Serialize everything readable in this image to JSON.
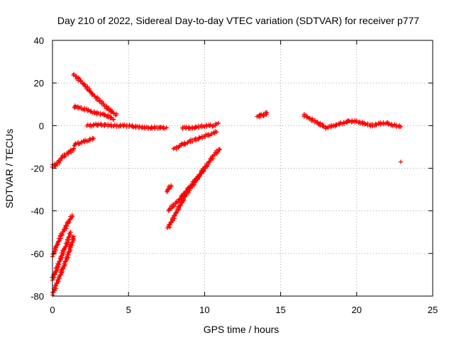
{
  "chart_data": {
    "type": "scatter",
    "title": "Day 210 of 2022, Sidereal Day-to-day VTEC variation (SDTVAR) for receiver p777",
    "xlabel": "GPS time / hours",
    "ylabel": "SDTVAR / TECUs",
    "xlim": [
      0,
      25
    ],
    "ylim": [
      -80,
      40
    ],
    "xticks": [
      "0",
      "5",
      "10",
      "15",
      "20",
      "25"
    ],
    "yticks": [
      "-80",
      "-60",
      "-40",
      "-20",
      "0",
      "20",
      "40"
    ],
    "grid": true,
    "legend": "none",
    "marker": "plus",
    "color": "#ff0000",
    "segments": [
      {
        "x": [
          0.0,
          0.3,
          0.6,
          1.0,
          1.3
        ],
        "y": [
          -61,
          -56,
          -51,
          -46,
          -42
        ]
      },
      {
        "x": [
          0.0,
          0.3,
          0.6,
          0.9,
          1.2
        ],
        "y": [
          -72,
          -67,
          -61,
          -56,
          -50
        ]
      },
      {
        "x": [
          0.0,
          0.4,
          0.8,
          1.2,
          1.4
        ],
        "y": [
          -79,
          -72,
          -65,
          -57,
          -52
        ]
      },
      {
        "x": [
          0.0,
          0.3,
          0.6,
          1.0,
          1.4
        ],
        "y": [
          -19,
          -18,
          -15,
          -13,
          -11
        ]
      },
      {
        "x": [
          1.4,
          1.8,
          2.3,
          2.7
        ],
        "y": [
          -9,
          -8,
          -7,
          -6
        ]
      },
      {
        "x": [
          1.4,
          2.0,
          2.6,
          3.2,
          3.8,
          4.2
        ],
        "y": [
          24,
          20,
          15,
          11,
          7,
          5
        ]
      },
      {
        "x": [
          1.4,
          2.0,
          2.8,
          3.5,
          4.0
        ],
        "y": [
          9,
          8,
          6,
          5,
          3
        ]
      },
      {
        "x": [
          2.3,
          3.0,
          4.0,
          5.0,
          6.0,
          7.0,
          7.5
        ],
        "y": [
          0,
          0.5,
          0,
          0,
          -1,
          -1,
          -1
        ]
      },
      {
        "x": [
          7.5,
          7.8
        ],
        "y": [
          -31,
          -28
        ]
      },
      {
        "x": [
          7.6,
          8.2,
          8.8,
          9.4,
          10.0,
          10.6,
          11.0
        ],
        "y": [
          -48,
          -40,
          -32,
          -26,
          -20,
          -14,
          -11
        ]
      },
      {
        "x": [
          7.6,
          8.3,
          9.0,
          9.6,
          10.0
        ],
        "y": [
          -40,
          -35,
          -29,
          -24,
          -20
        ]
      },
      {
        "x": [
          8.0,
          8.5,
          9.2,
          10.0,
          10.8
        ],
        "y": [
          -11,
          -9,
          -7,
          -5,
          -3
        ]
      },
      {
        "x": [
          8.5,
          9.3,
          10.0,
          10.6,
          10.9
        ],
        "y": [
          -1,
          -1,
          0,
          0,
          1
        ]
      },
      {
        "x": [
          13.5,
          13.7,
          13.9,
          14.1
        ],
        "y": [
          4,
          5,
          5,
          6
        ]
      },
      {
        "x": [
          16.5,
          17.0,
          17.5,
          18.0,
          18.5,
          19.0,
          19.5,
          20.0,
          20.5,
          21.0,
          21.5,
          22.0,
          22.5,
          22.9
        ],
        "y": [
          5,
          3,
          1,
          -1,
          0,
          1,
          2,
          2,
          1,
          0,
          1,
          1,
          0,
          -0.5
        ]
      }
    ],
    "points": [
      {
        "x": 22.9,
        "y": -17
      }
    ]
  }
}
